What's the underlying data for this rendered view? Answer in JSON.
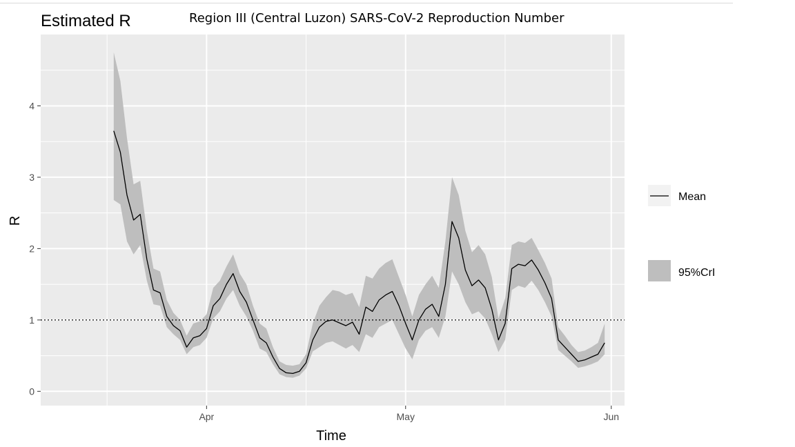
{
  "subtitle": "Region III (Central Luzon) SARS-CoV-2 Reproduction Number",
  "colors": {
    "panel": "#ebebeb",
    "grid": "#ffffff",
    "ribbon": "#bebebe",
    "line": "#000000",
    "ticktext": "#4d4d4d"
  },
  "chart_data": {
    "type": "line",
    "title": "Estimated R",
    "xlabel": "Time",
    "ylabel": "R",
    "x_unit": "date",
    "xlim": [
      "2020-03-07",
      "2020-06-03"
    ],
    "ylim": [
      -0.2,
      5.0
    ],
    "x_ticks": [
      {
        "date": "2020-04-01",
        "label": "Apr"
      },
      {
        "date": "2020-05-01",
        "label": "May"
      },
      {
        "date": "2020-06-01",
        "label": "Jun"
      }
    ],
    "x_minor_ticks": [
      "2020-03-17",
      "2020-04-16",
      "2020-05-16"
    ],
    "y_ticks": [
      0,
      1,
      2,
      3,
      4
    ],
    "y_minor_ticks": [
      0.5,
      1.5,
      2.5,
      3.5,
      4.5
    ],
    "reference_line": {
      "y": 1,
      "style": "dotted"
    },
    "grid": true,
    "legend_position": "right",
    "series": [
      {
        "name": "Mean",
        "kind": "line",
        "x": [
          "2020-03-18",
          "2020-03-19",
          "2020-03-20",
          "2020-03-21",
          "2020-03-22",
          "2020-03-23",
          "2020-03-24",
          "2020-03-25",
          "2020-03-26",
          "2020-03-27",
          "2020-03-28",
          "2020-03-29",
          "2020-03-30",
          "2020-03-31",
          "2020-04-01",
          "2020-04-02",
          "2020-04-03",
          "2020-04-04",
          "2020-04-05",
          "2020-04-06",
          "2020-04-07",
          "2020-04-08",
          "2020-04-09",
          "2020-04-10",
          "2020-04-11",
          "2020-04-12",
          "2020-04-13",
          "2020-04-14",
          "2020-04-15",
          "2020-04-16",
          "2020-04-17",
          "2020-04-18",
          "2020-04-19",
          "2020-04-20",
          "2020-04-21",
          "2020-04-22",
          "2020-04-23",
          "2020-04-24",
          "2020-04-25",
          "2020-04-26",
          "2020-04-27",
          "2020-04-28",
          "2020-04-29",
          "2020-04-30",
          "2020-05-01",
          "2020-05-02",
          "2020-05-03",
          "2020-05-04",
          "2020-05-05",
          "2020-05-06",
          "2020-05-07",
          "2020-05-08",
          "2020-05-09",
          "2020-05-10",
          "2020-05-11",
          "2020-05-12",
          "2020-05-13",
          "2020-05-14",
          "2020-05-15",
          "2020-05-16",
          "2020-05-17",
          "2020-05-18",
          "2020-05-19",
          "2020-05-20",
          "2020-05-21",
          "2020-05-22",
          "2020-05-23",
          "2020-05-24",
          "2020-05-25",
          "2020-05-26",
          "2020-05-27",
          "2020-05-28",
          "2020-05-29",
          "2020-05-30",
          "2020-05-31"
        ],
        "values": [
          3.65,
          3.35,
          2.75,
          2.4,
          2.48,
          1.85,
          1.42,
          1.38,
          1.05,
          0.92,
          0.85,
          0.62,
          0.75,
          0.78,
          0.88,
          1.2,
          1.3,
          1.5,
          1.65,
          1.4,
          1.25,
          1.0,
          0.75,
          0.68,
          0.48,
          0.32,
          0.26,
          0.25,
          0.28,
          0.4,
          0.72,
          0.9,
          0.98,
          1.0,
          0.96,
          0.92,
          0.97,
          0.8,
          1.18,
          1.12,
          1.28,
          1.35,
          1.4,
          1.2,
          0.95,
          0.72,
          1.0,
          1.15,
          1.22,
          1.05,
          1.5,
          2.38,
          2.15,
          1.7,
          1.48,
          1.56,
          1.45,
          1.15,
          0.72,
          0.95,
          1.72,
          1.78,
          1.76,
          1.84,
          1.7,
          1.52,
          1.3,
          0.72,
          0.62,
          0.52,
          0.42,
          0.44,
          0.48,
          0.52,
          0.68
        ]
      },
      {
        "name": "95%CrI",
        "kind": "ribbon",
        "lower": [
          2.68,
          2.62,
          2.1,
          1.92,
          2.05,
          1.55,
          1.22,
          1.2,
          0.9,
          0.8,
          0.72,
          0.52,
          0.62,
          0.65,
          0.75,
          1.02,
          1.12,
          1.3,
          1.42,
          1.2,
          1.05,
          0.85,
          0.6,
          0.55,
          0.38,
          0.24,
          0.2,
          0.19,
          0.22,
          0.32,
          0.56,
          0.62,
          0.68,
          0.7,
          0.65,
          0.6,
          0.65,
          0.55,
          0.8,
          0.75,
          0.9,
          0.95,
          1.0,
          0.8,
          0.6,
          0.45,
          0.72,
          0.85,
          0.9,
          0.75,
          1.05,
          1.68,
          1.5,
          1.25,
          1.08,
          1.12,
          1.02,
          0.8,
          0.55,
          0.72,
          1.42,
          1.48,
          1.45,
          1.55,
          1.42,
          1.25,
          1.05,
          0.58,
          0.5,
          0.42,
          0.33,
          0.35,
          0.38,
          0.42,
          0.52
        ],
        "upper": [
          4.75,
          4.35,
          3.55,
          2.9,
          2.95,
          2.25,
          1.72,
          1.68,
          1.28,
          1.1,
          1.0,
          0.78,
          0.95,
          0.98,
          1.08,
          1.45,
          1.55,
          1.75,
          1.92,
          1.65,
          1.5,
          1.2,
          0.95,
          0.88,
          0.62,
          0.42,
          0.37,
          0.36,
          0.38,
          0.52,
          0.95,
          1.2,
          1.32,
          1.42,
          1.4,
          1.35,
          1.38,
          1.18,
          1.62,
          1.58,
          1.72,
          1.8,
          1.85,
          1.6,
          1.35,
          1.05,
          1.35,
          1.5,
          1.62,
          1.45,
          2.1,
          3.0,
          2.75,
          2.25,
          1.95,
          2.05,
          1.92,
          1.6,
          1.02,
          1.3,
          2.05,
          2.1,
          2.08,
          2.15,
          1.98,
          1.8,
          1.58,
          0.9,
          0.78,
          0.65,
          0.55,
          0.57,
          0.62,
          0.68,
          0.95
        ]
      }
    ]
  }
}
